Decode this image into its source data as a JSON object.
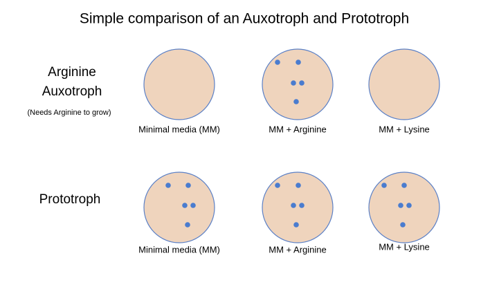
{
  "title": "Simple comparison of an Auxotroph and Prototroph",
  "rows": [
    {
      "label": [
        "Arginine",
        "Auxotroph"
      ],
      "note": "(Needs Arginine to grow)",
      "plates": [
        {
          "label": "Minimal media (MM)"
        },
        {
          "label": "MM + Arginine"
        },
        {
          "label": "MM + Lysine"
        }
      ]
    },
    {
      "label": [
        "Prototroph"
      ],
      "plates": [
        {
          "label": "Minimal media (MM)"
        },
        {
          "label": "MM + Arginine"
        },
        {
          "label": "MM + Lysine"
        }
      ]
    }
  ]
}
